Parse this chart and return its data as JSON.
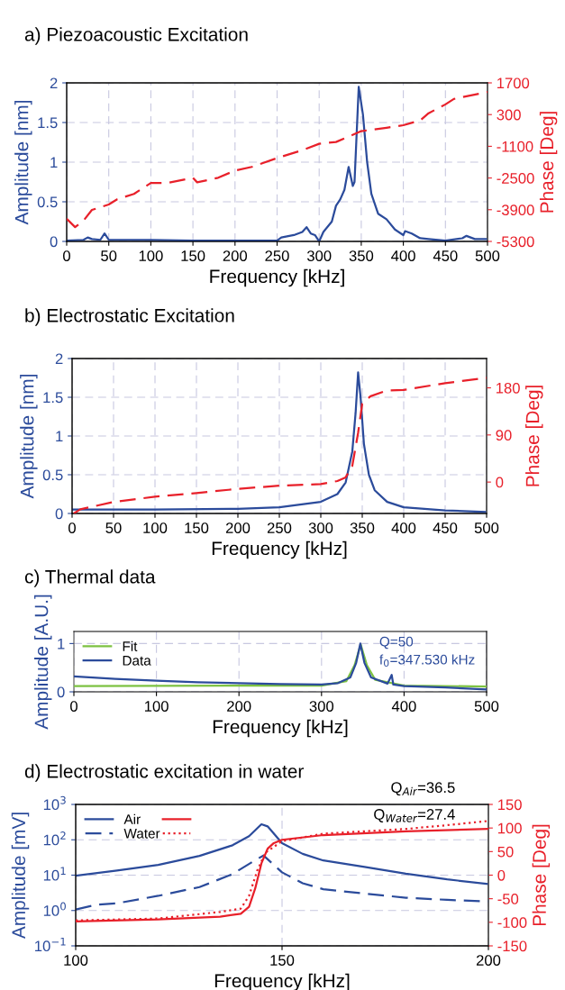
{
  "chart_data": [
    {
      "type": "line",
      "title": "a) Piezoacoustic Excitation",
      "xlabel": "Frequency [kHz]",
      "ylabel": "Amplitude [nm]",
      "y2label": "Phase [Deg]",
      "xlim": [
        0,
        500
      ],
      "xticks": [
        0,
        50,
        100,
        150,
        200,
        250,
        300,
        350,
        400,
        450,
        500
      ],
      "ylim": [
        0,
        2
      ],
      "yticks": [
        0,
        0.5,
        1,
        1.5,
        2
      ],
      "y2lim": [
        -5300,
        1700
      ],
      "y2ticks": [
        -5300,
        -3900,
        -2500,
        -1100,
        300,
        1700
      ],
      "grid": true,
      "legend": false,
      "series": [
        {
          "color": "#2b4b9b",
          "line_style": "solid",
          "x": [
            0,
            20,
            25,
            30,
            40,
            45,
            50,
            100,
            150,
            200,
            250,
            255,
            270,
            280,
            285,
            290,
            295,
            300,
            305,
            315,
            320,
            325,
            330,
            335,
            340,
            342,
            347,
            352,
            357,
            362,
            370,
            380,
            390,
            400,
            402,
            410,
            420,
            430,
            450,
            470,
            475,
            485,
            500
          ],
          "values": [
            0.01,
            0.02,
            0.05,
            0.03,
            0.02,
            0.1,
            0.02,
            0.02,
            0.01,
            0.01,
            0.01,
            0.05,
            0.08,
            0.12,
            0.18,
            0.1,
            0.08,
            0.0,
            0.12,
            0.25,
            0.45,
            0.53,
            0.65,
            0.94,
            0.7,
            0.75,
            1.95,
            1.6,
            1.0,
            0.6,
            0.35,
            0.28,
            0.15,
            0.08,
            0.13,
            0.1,
            0.04,
            0.03,
            0.01,
            0.04,
            0.07,
            0.03,
            0.03
          ]
        },
        {
          "color": "#e8202a",
          "line_style": "dashed",
          "axis": "y2",
          "x": [
            0,
            10,
            20,
            30,
            50,
            60,
            80,
            100,
            120,
            150,
            155,
            180,
            200,
            220,
            250,
            280,
            300,
            320,
            350,
            380,
            400,
            420,
            430,
            450,
            460,
            500
          ],
          "values": [
            -4300,
            -4670,
            -4380,
            -3910,
            -3670,
            -3440,
            -3200,
            -2720,
            -2720,
            -2490,
            -2690,
            -2490,
            -2170,
            -2010,
            -1620,
            -1270,
            -990,
            -910,
            -430,
            -280,
            -170,
            40,
            360,
            750,
            990,
            1300
          ]
        }
      ]
    },
    {
      "type": "line",
      "title": "b) Electrostatic Excitation",
      "xlabel": "Frequency [kHz]",
      "ylabel": "Amplitude [nm]",
      "y2label": "Phase [Deg]",
      "xlim": [
        0,
        500
      ],
      "xticks": [
        0,
        50,
        100,
        150,
        200,
        250,
        300,
        350,
        400,
        450,
        500
      ],
      "ylim": [
        0,
        2
      ],
      "yticks": [
        0,
        0.5,
        1,
        1.5,
        2
      ],
      "y2lim": [
        -60,
        236
      ],
      "y2ticks": [
        0,
        90,
        180
      ],
      "grid": true,
      "legend": false,
      "series": [
        {
          "color": "#2b4b9b",
          "line_style": "solid",
          "x": [
            0,
            100,
            200,
            250,
            300,
            320,
            330,
            338,
            342,
            345,
            348,
            352,
            358,
            365,
            380,
            400,
            450,
            500
          ],
          "values": [
            0.05,
            0.05,
            0.06,
            0.08,
            0.15,
            0.25,
            0.4,
            0.8,
            1.3,
            1.82,
            1.5,
            0.9,
            0.5,
            0.3,
            0.15,
            0.08,
            0.04,
            0.02
          ]
        },
        {
          "color": "#e8202a",
          "line_style": "dashed",
          "axis": "y2",
          "x": [
            2,
            10,
            50,
            100,
            150,
            200,
            250,
            300,
            320,
            330,
            338,
            345,
            350,
            360,
            380,
            400,
            450,
            500
          ],
          "values": [
            -60,
            -52,
            -38,
            -28,
            -21,
            -13,
            -7,
            -4,
            2,
            9,
            31,
            94,
            150,
            164,
            175,
            176,
            189,
            199
          ]
        }
      ]
    },
    {
      "type": "line",
      "title": "c) Thermal data",
      "xlabel": "Frequency [kHz]",
      "ylabel": "Amplitude [A.U.]",
      "xlim": [
        0,
        500
      ],
      "xticks": [
        0,
        100,
        200,
        300,
        400,
        500
      ],
      "ylim": [
        0,
        1.25
      ],
      "yticks": [
        0,
        1
      ],
      "grid": true,
      "legend": "top left",
      "annotations": [
        "Q=50",
        "f$_{0}$=347.530 kHz"
      ],
      "series": [
        {
          "name": "Fit",
          "color": "#7dc242",
          "line_style": "solid",
          "x": [
            0,
            300,
            330,
            340,
            347.5,
            355,
            365,
            400,
            500
          ],
          "values": [
            0.12,
            0.13,
            0.22,
            0.55,
            0.98,
            0.55,
            0.25,
            0.13,
            0.11
          ]
        },
        {
          "name": "Data",
          "color": "#2b4b9b",
          "line_style": "solid",
          "x": [
            0,
            50,
            100,
            150,
            200,
            250,
            300,
            320,
            335,
            342,
            347,
            352,
            360,
            380,
            385,
            387,
            400,
            450,
            500
          ],
          "values": [
            0.32,
            0.27,
            0.23,
            0.2,
            0.18,
            0.16,
            0.15,
            0.18,
            0.3,
            0.6,
            1.0,
            0.6,
            0.3,
            0.17,
            0.35,
            0.15,
            0.12,
            0.09,
            0.05
          ]
        }
      ]
    },
    {
      "type": "line",
      "title": "d) Electrostatic excitation in water",
      "xlabel": "Frequency [kHz]",
      "ylabel": "Amplitude [mV]",
      "y2label": "Phase [Deg]",
      "xlim": [
        100,
        200
      ],
      "xticks": [
        100,
        150,
        200
      ],
      "ylim": [
        0.1,
        1000
      ],
      "yticks": [
        {
          "value": 0.1,
          "label": "10$^{−1}$"
        },
        {
          "value": 1,
          "label": "10$^{0}$"
        },
        {
          "value": 10,
          "label": "10$^{1}$"
        },
        {
          "value": 100,
          "label": "10$^{2}$"
        },
        {
          "value": 1000,
          "label": "10$^{3}$"
        }
      ],
      "log": "y",
      "y2lim": [
        -150,
        150
      ],
      "y2ticks": [
        -150,
        -100,
        -50,
        0,
        50,
        100,
        150
      ],
      "grid": true,
      "legend": "top left",
      "annotations": [
        "Q$_{Air}$=36.5",
        "Q$_{Water}$=27.4"
      ],
      "series": [
        {
          "name": "Air",
          "color": "#2b4b9b",
          "line_style": "solid",
          "x": [
            100,
            110,
            120,
            130,
            138,
            142,
            145,
            146.5,
            150,
            155,
            160,
            170,
            180,
            190,
            200
          ],
          "values": [
            9.6,
            13.5,
            19.4,
            35,
            70,
            126,
            275,
            240,
            80,
            40,
            26,
            17,
            11,
            7.6,
            5.6
          ]
        },
        {
          "color": "#e8202a",
          "line_style": "solid",
          "axis": "y2",
          "x": [
            100,
            120,
            135,
            140,
            142,
            143.5,
            145,
            146.5,
            148,
            150,
            160,
            180,
            200
          ],
          "values": [
            -98,
            -94,
            -88,
            -82,
            -67,
            -28,
            25,
            56,
            68,
            75,
            85,
            93,
            98
          ]
        },
        {
          "name": "Water",
          "color": "#2b4b9b",
          "line_style": "dashed",
          "x": [
            100,
            105,
            110,
            120,
            130,
            138,
            143,
            145.5,
            150,
            155,
            160,
            170,
            180,
            190,
            200
          ],
          "values": [
            1.07,
            1.45,
            1.6,
            2.6,
            4.6,
            10.7,
            24.5,
            36,
            12,
            5.9,
            4,
            3,
            2.3,
            2,
            1.8
          ]
        },
        {
          "color": "#e8202a",
          "line_style": "dotted",
          "axis": "y2",
          "x": [
            100,
            120,
            135,
            140,
            142,
            144,
            146,
            150,
            160,
            180,
            190,
            200
          ],
          "values": [
            -96,
            -92,
            -78,
            -71,
            -44,
            10,
            48,
            72,
            88,
            98,
            106,
            115
          ]
        }
      ]
    }
  ]
}
